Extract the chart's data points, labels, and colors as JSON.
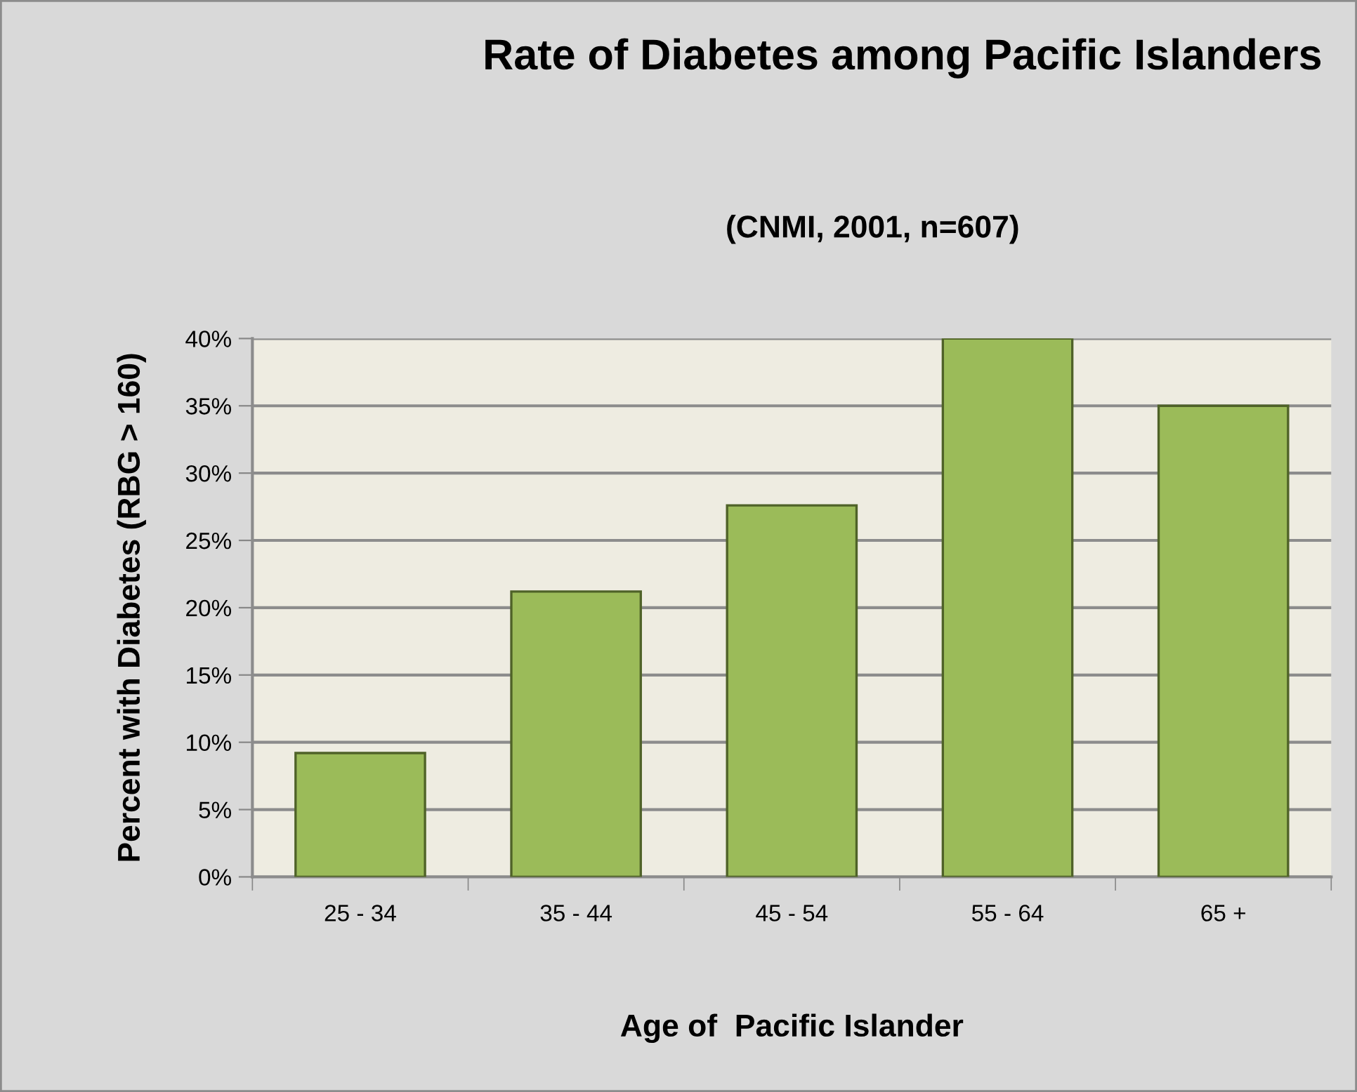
{
  "chart_data": {
    "type": "bar",
    "title": "Rate of Diabetes among Pacific Islanders",
    "subtitle": "(CNMI, 2001, n=607)",
    "xlabel": "Age of  Pacific Islander",
    "ylabel": "Percent with Diabetes (RBG > 160)",
    "categories": [
      "25 - 34",
      "35 - 44",
      "45 - 54",
      "55 - 64",
      "65 +"
    ],
    "values": [
      9.2,
      21.2,
      27.6,
      40,
      35.0
    ],
    "color": "#9bbb59",
    "ylim": [
      0,
      40
    ],
    "yticks": [
      {
        "value": 0,
        "label": "0%"
      },
      {
        "value": 5,
        "label": "5%"
      },
      {
        "value": 10,
        "label": "10%"
      },
      {
        "value": 15,
        "label": "15%"
      },
      {
        "value": 20,
        "label": "20%"
      },
      {
        "value": 25,
        "label": "25%"
      },
      {
        "value": 30,
        "label": "30%"
      },
      {
        "value": 35,
        "label": "35%"
      },
      {
        "value": 40,
        "label": "40%"
      }
    ],
    "grid": "y",
    "legend": false
  }
}
